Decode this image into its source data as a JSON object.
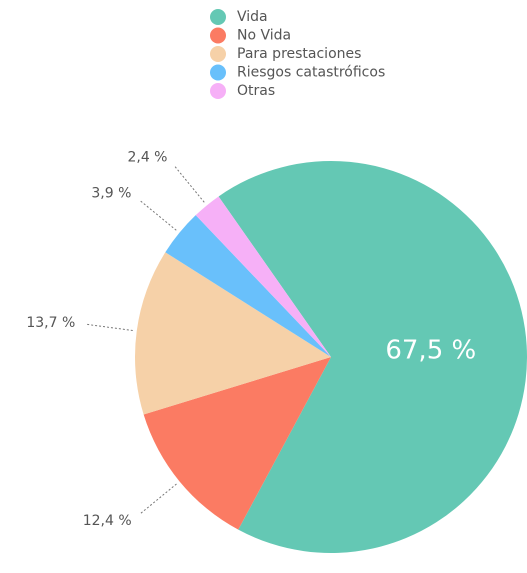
{
  "chart_data": {
    "type": "pie",
    "categories": [
      "Vida",
      "No Vida",
      "Para prestaciones",
      "Riesgos catastróficos",
      "Otras"
    ],
    "values": [
      67.5,
      12.4,
      13.7,
      3.9,
      2.4
    ],
    "value_labels": [
      "67,5 %",
      "12,4 %",
      "13,7 %",
      "3,9 %",
      "2,4 %"
    ],
    "colors": [
      "#64c8b4",
      "#fb7b63",
      "#f6d1a8",
      "#69c0fb",
      "#f6b0f7"
    ]
  }
}
